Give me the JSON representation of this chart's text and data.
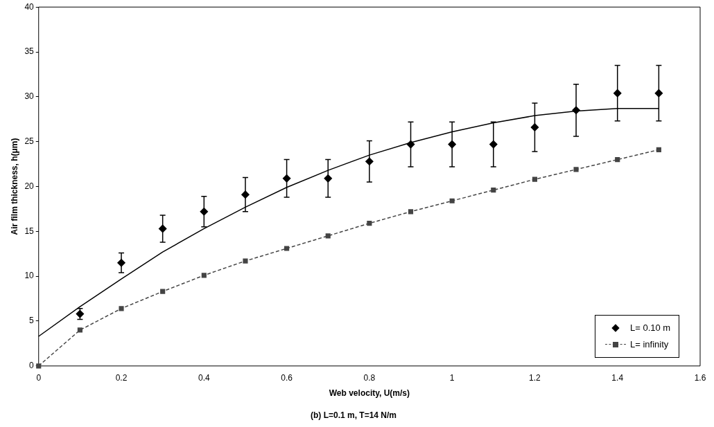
{
  "chart_data": {
    "type": "scatter",
    "title": "(b) L=0.1 m, T=14 N/m",
    "xlabel": "Web velocity, U(m/s)",
    "ylabel": "Air film thickness, h(μm)",
    "xlim": [
      0,
      1.6
    ],
    "xticks": [
      0,
      0.2,
      0.4,
      0.6,
      0.8,
      1,
      1.2,
      1.4,
      1.6
    ],
    "ylim": [
      0,
      40
    ],
    "yticks": [
      0,
      5,
      10,
      15,
      20,
      25,
      30,
      35,
      40
    ],
    "grid": false,
    "legend": "bottom right",
    "series": [
      {
        "name": "L= 0.10 m",
        "type": "scatter",
        "marker": "diamond",
        "color": "#000000",
        "x": [
          0.1,
          0.2,
          0.3,
          0.4,
          0.5,
          0.6,
          0.7,
          0.8,
          0.9,
          1.0,
          1.1,
          1.2,
          1.3,
          1.4,
          1.5
        ],
        "values": [
          5.8,
          11.5,
          15.3,
          17.2,
          19.1,
          20.9,
          20.9,
          22.8,
          24.7,
          24.7,
          24.7,
          26.6,
          28.5,
          30.4,
          30.4
        ],
        "errors": [
          0.6,
          1.1,
          1.5,
          1.7,
          1.9,
          2.1,
          2.1,
          2.3,
          2.5,
          2.5,
          2.5,
          2.7,
          2.9,
          3.1,
          3.1
        ]
      },
      {
        "type": "line",
        "marker": "none",
        "line_style": "solid",
        "color": "#000000",
        "x": [
          0,
          0.1,
          0.2,
          0.3,
          0.4,
          0.5,
          0.6,
          0.7,
          0.8,
          0.9,
          1.0,
          1.1,
          1.2,
          1.3,
          1.4,
          1.5
        ],
        "values": [
          3.3,
          6.6,
          9.7,
          12.7,
          15.3,
          17.7,
          19.9,
          21.8,
          23.5,
          24.9,
          26.1,
          27.1,
          27.9,
          28.4,
          28.7,
          28.7
        ]
      },
      {
        "name": "L= infinity",
        "type": "line",
        "marker": "square",
        "line_style": "dashed",
        "color": "#444444",
        "x": [
          0,
          0.1,
          0.2,
          0.3,
          0.4,
          0.5,
          0.6,
          0.7,
          0.8,
          0.9,
          1.0,
          1.1,
          1.2,
          1.3,
          1.4,
          1.5
        ],
        "values": [
          0,
          4.0,
          6.4,
          8.3,
          10.1,
          11.7,
          13.1,
          14.5,
          15.9,
          17.2,
          18.4,
          19.6,
          20.8,
          21.9,
          23.0,
          24.1
        ]
      }
    ]
  }
}
